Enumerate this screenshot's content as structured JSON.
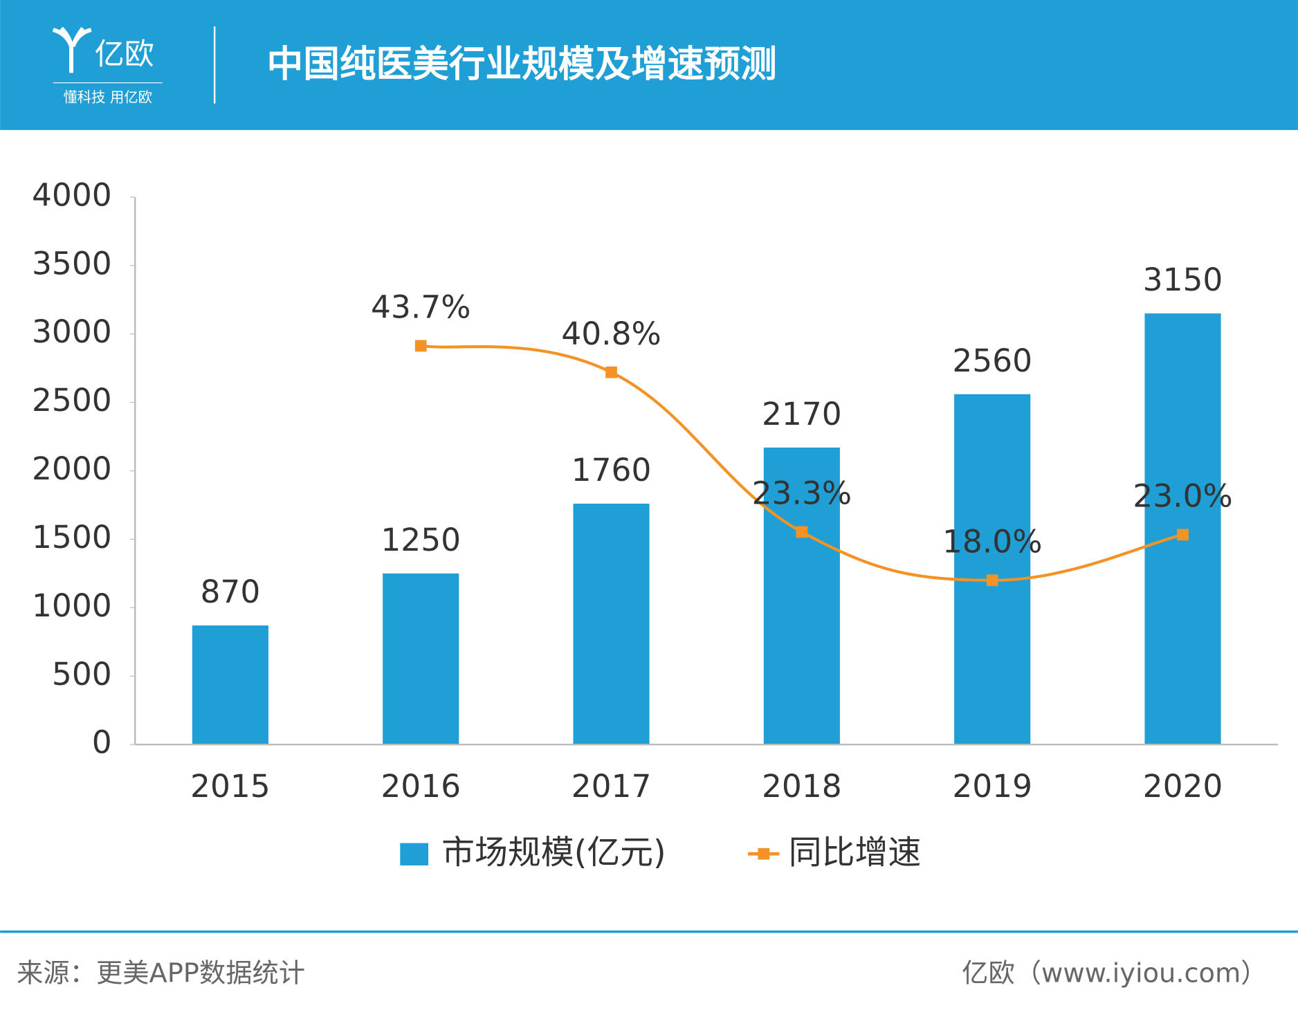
{
  "header": {
    "logo": {
      "name": "亿欧",
      "slogan": "懂科技 用亿欧"
    },
    "title": "中国纯医美行业规模及增速预测"
  },
  "chart_data": {
    "type": "bar",
    "categories": [
      "2015",
      "2016",
      "2017",
      "2018",
      "2019",
      "2020"
    ],
    "series": [
      {
        "name": "市场规模(亿元)",
        "type": "bar",
        "color": "#1f9fd5",
        "values": [
          870,
          1250,
          1760,
          2170,
          2560,
          3150
        ]
      },
      {
        "name": "同比增速",
        "type": "line",
        "axis": "y2",
        "color": "#f39325",
        "values": [
          null,
          43.7,
          40.8,
          23.3,
          18.0,
          23.0
        ],
        "value_labels": [
          null,
          "43.7%",
          "40.8%",
          "23.3%",
          "18.0%",
          "23.0%"
        ]
      }
    ],
    "ylim": [
      0,
      4000
    ],
    "yticks": [
      0,
      500,
      1000,
      1500,
      2000,
      2500,
      3000,
      3500,
      4000
    ],
    "y2lim": [
      0,
      60
    ],
    "legend": "bottom"
  },
  "footer": {
    "source": "来源：更美APP数据统计",
    "credit": "亿欧（www.iyiou.com）"
  }
}
